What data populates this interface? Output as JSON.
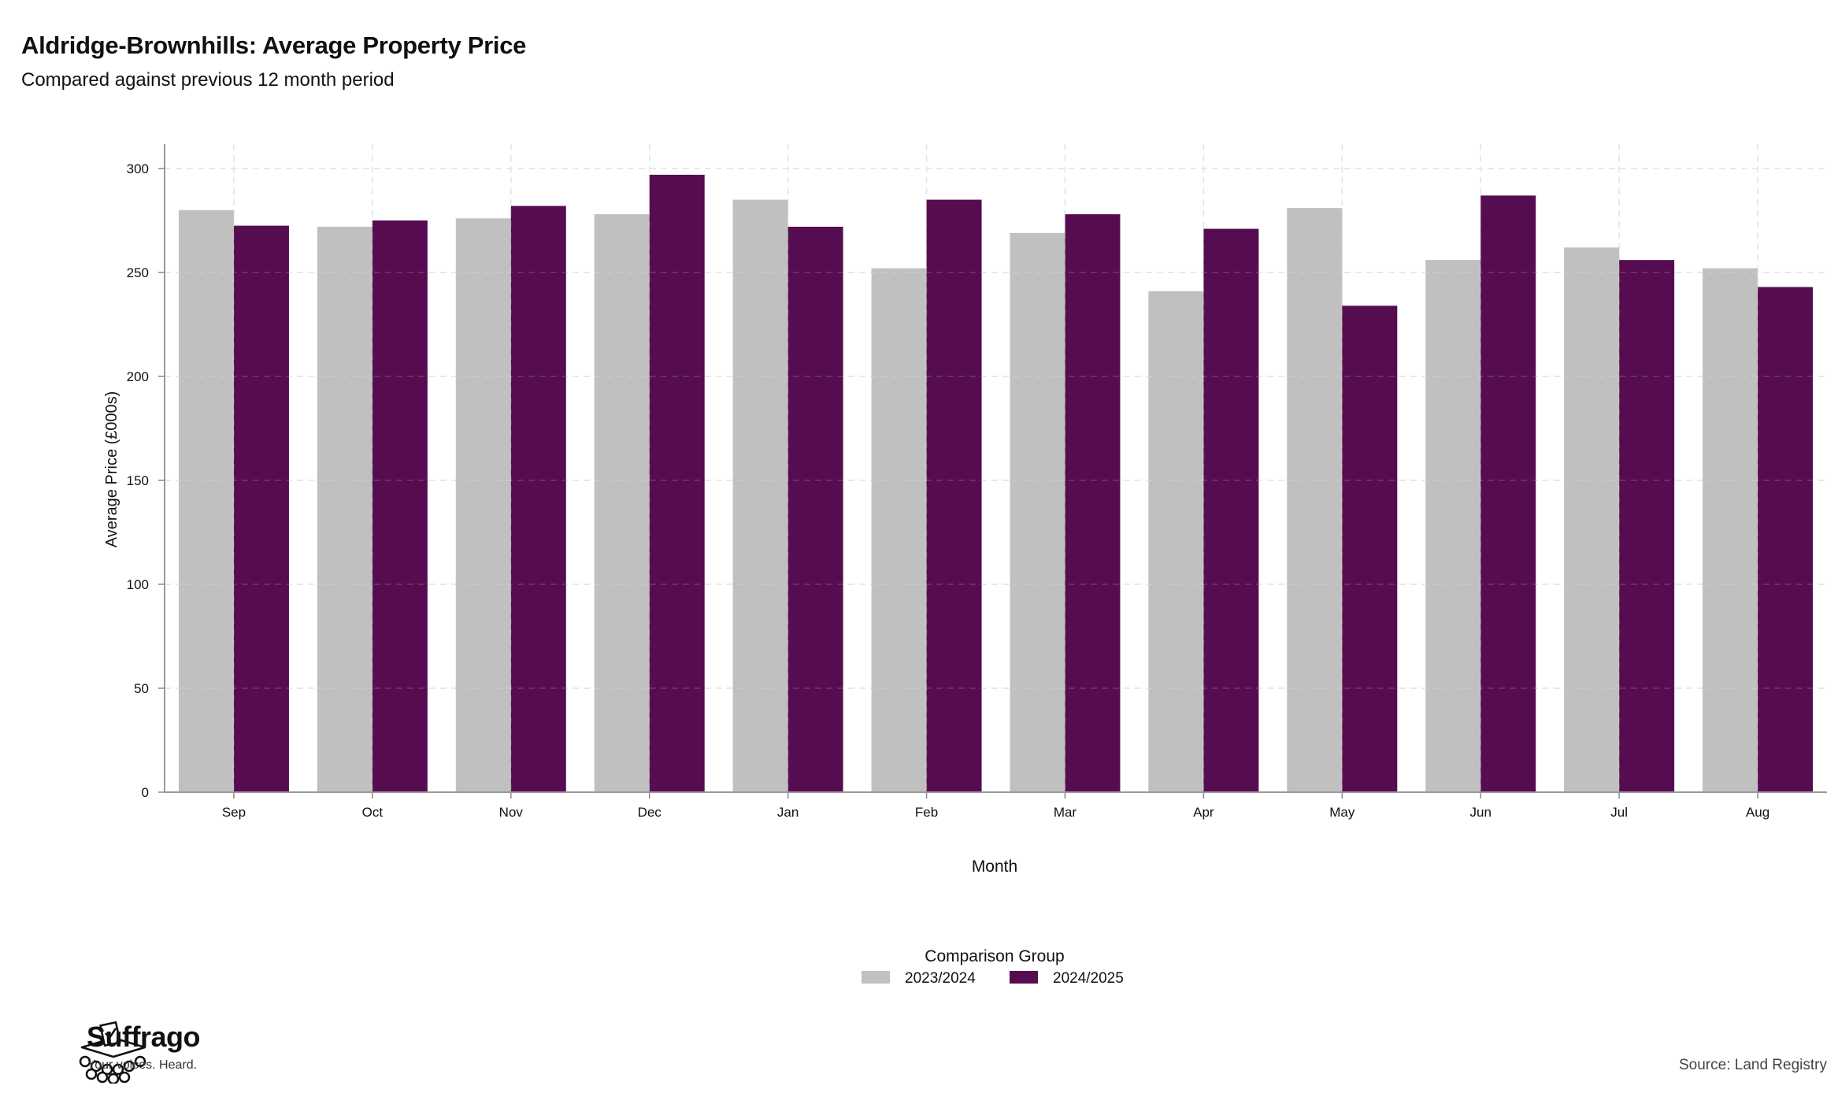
{
  "header": {
    "title": "Aldridge-Brownhills: Average Property Price",
    "subtitle": "Compared against previous 12 month period"
  },
  "brand": {
    "name": "Suffrago",
    "tagline": "Your voices. Heard.",
    "logo_icon": "ballot-box-crowd-icon"
  },
  "footer": {
    "source": "Source: Land Registry"
  },
  "chart_data": {
    "type": "bar",
    "xlabel": "Month",
    "ylabel": "Average Price (£000s)",
    "ylim": [
      0,
      300
    ],
    "yticks": [
      0,
      50,
      100,
      150,
      200,
      250,
      300
    ],
    "grid": true,
    "legend": {
      "title": "Comparison Group",
      "placement": "bottom-center"
    },
    "categories": [
      "Sep",
      "Oct",
      "Nov",
      "Dec",
      "Jan",
      "Feb",
      "Mar",
      "Apr",
      "May",
      "Jun",
      "Jul",
      "Aug"
    ],
    "series": [
      {
        "name": "2023/2024",
        "color": "#c0c0c0",
        "values": [
          280,
          272,
          276,
          278,
          285,
          252,
          269,
          241,
          281,
          256,
          262,
          252
        ]
      },
      {
        "name": "2024/2025",
        "color": "#560c50",
        "values": [
          272.5,
          275,
          282,
          297,
          272,
          285,
          278,
          271,
          234,
          287,
          256,
          243
        ]
      }
    ]
  }
}
